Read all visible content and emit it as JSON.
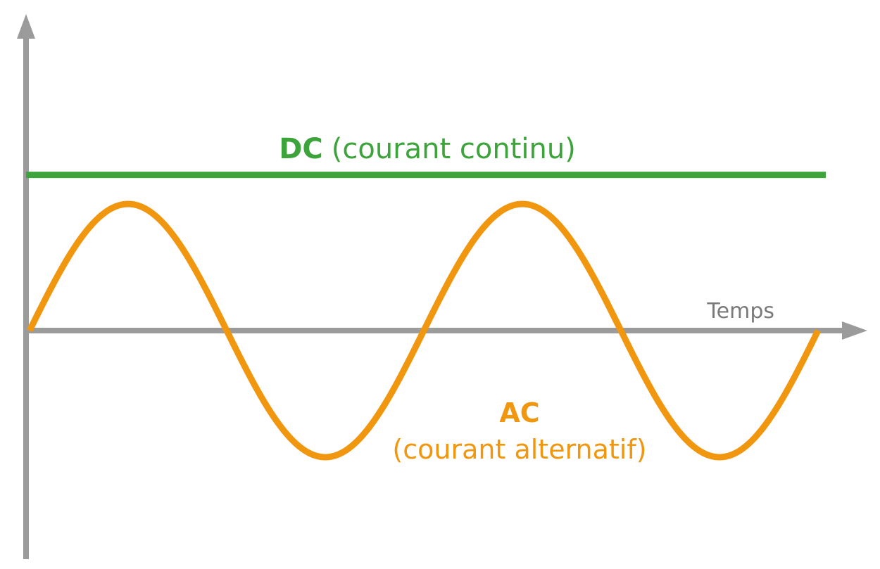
{
  "colors": {
    "axis": "#9b9b9b",
    "dc": "#3da33b",
    "ac": "#f0960f"
  },
  "chart_data": {
    "type": "line",
    "xlabel": "Temps",
    "ylabel": "",
    "grid": false,
    "series": [
      {
        "name": "DC",
        "description_label": "(courant continu)",
        "kind": "constant",
        "value": 1.23
      },
      {
        "name": "AC",
        "description_label": "(courant alternatif)",
        "kind": "sine",
        "amplitude": 1.0,
        "cycles": 2
      }
    ],
    "x_range": [
      0,
      2
    ],
    "y_range": [
      -1.62,
      2.45
    ]
  }
}
